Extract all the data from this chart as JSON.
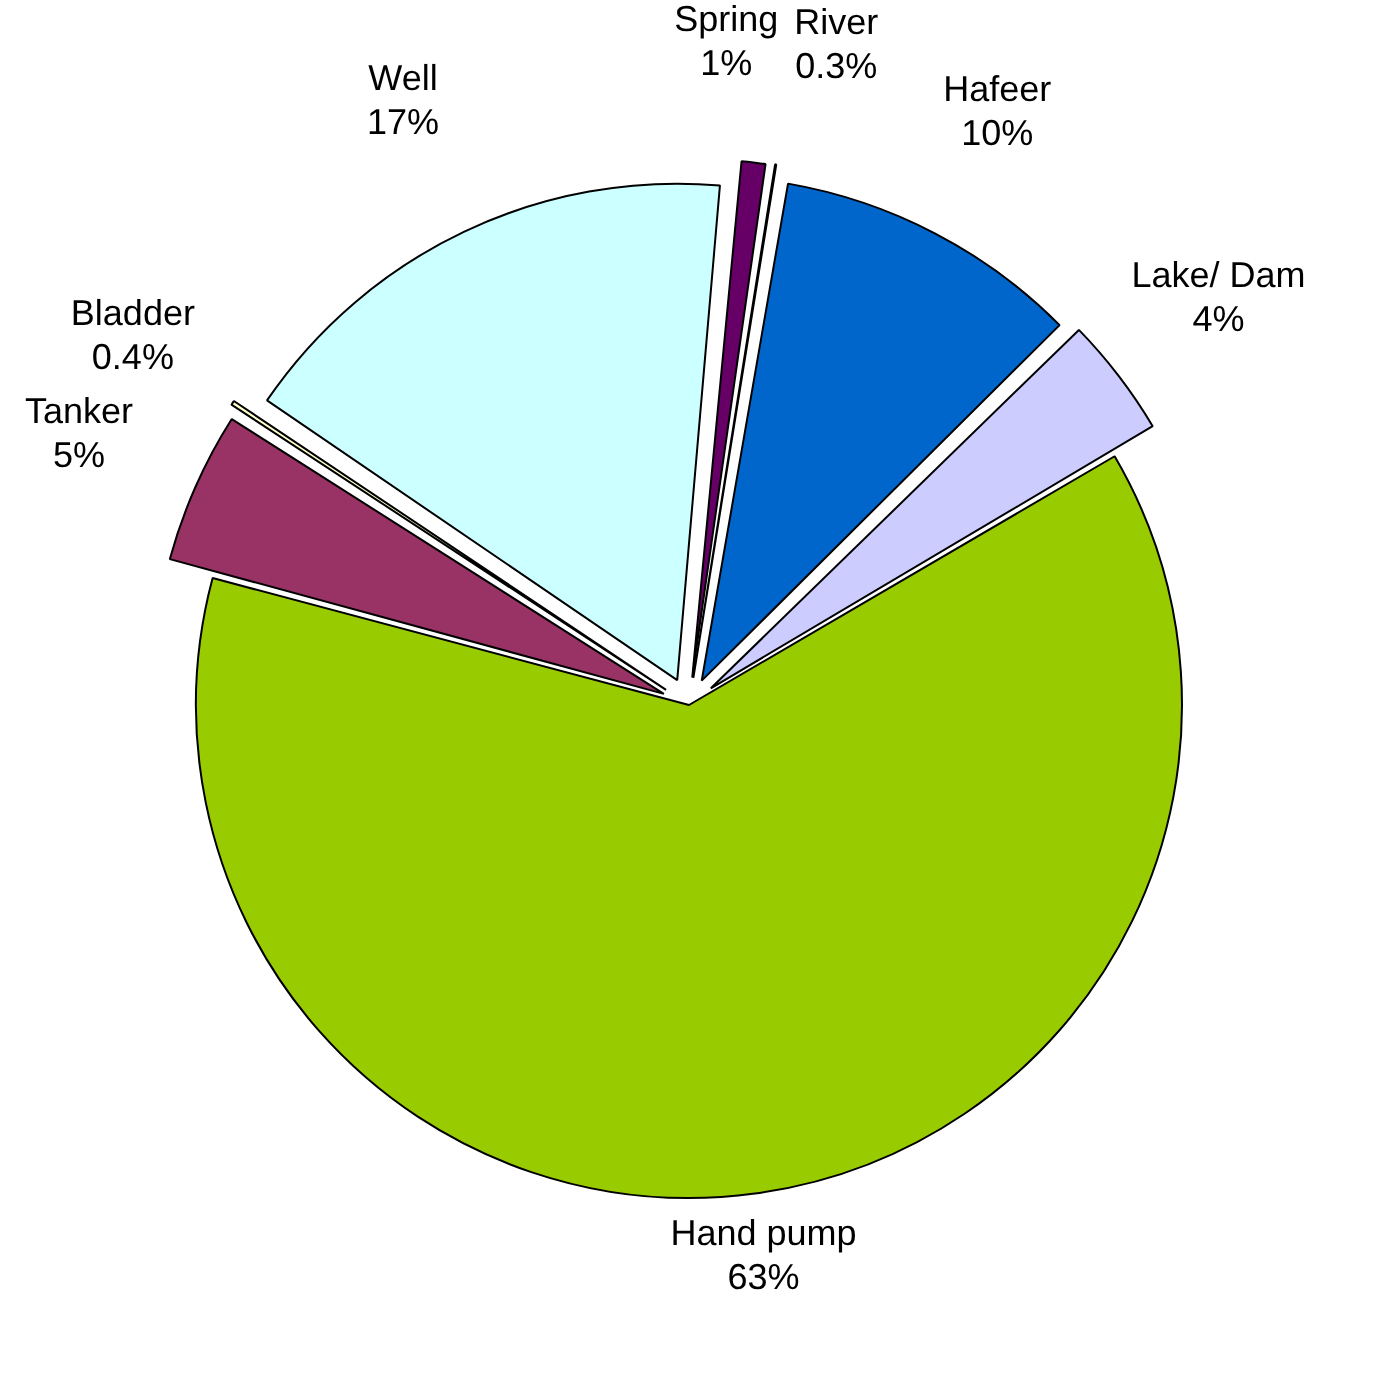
{
  "chart_data": {
    "type": "pie",
    "categories": [
      "Spring",
      "River",
      "Hafeer",
      "Lake/ Dam",
      "Hand pump",
      "Tanker",
      "Bladder",
      "Well"
    ],
    "values": [
      1,
      0.3,
      10,
      4,
      63,
      5,
      0.4,
      17
    ],
    "colors": [
      "#660066",
      "#ff8080",
      "#0066cc",
      "#ccccff",
      "#99cc00",
      "#993366",
      "#ffffcc",
      "#ccffff"
    ],
    "value_labels": [
      "1%",
      "0.3%",
      "10%",
      "4%",
      "63%",
      "5%",
      "0.4%",
      "17%"
    ],
    "legend": false
  }
}
